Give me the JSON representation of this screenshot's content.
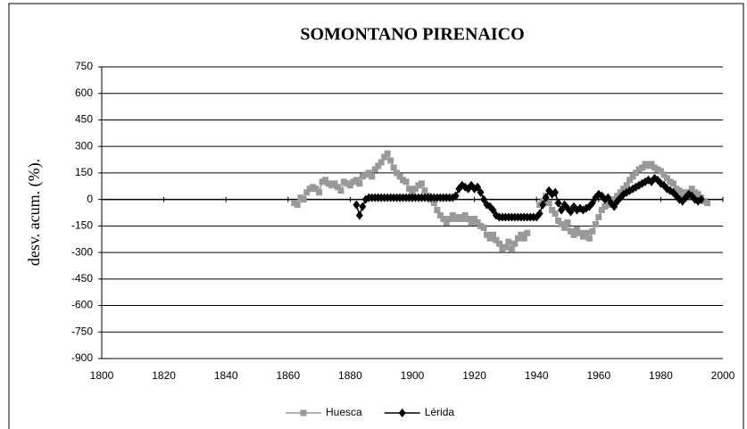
{
  "chart_data": {
    "type": "line",
    "title": "SOMONTANO PIRENAICO",
    "y_label": "desv. acum. (%).",
    "x": [
      1862,
      1863,
      1864,
      1865,
      1866,
      1867,
      1868,
      1869,
      1870,
      1871,
      1872,
      1873,
      1874,
      1875,
      1876,
      1877,
      1878,
      1879,
      1880,
      1881,
      1882,
      1883,
      1884,
      1885,
      1886,
      1887,
      1888,
      1889,
      1890,
      1891,
      1892,
      1893,
      1894,
      1895,
      1896,
      1897,
      1898,
      1899,
      1900,
      1901,
      1902,
      1903,
      1904,
      1905,
      1906,
      1907,
      1908,
      1909,
      1910,
      1911,
      1912,
      1913,
      1914,
      1915,
      1916,
      1917,
      1918,
      1919,
      1920,
      1921,
      1922,
      1923,
      1924,
      1925,
      1926,
      1927,
      1928,
      1929,
      1930,
      1931,
      1932,
      1933,
      1934,
      1935,
      1936,
      1937,
      1938,
      1939,
      1940,
      1941,
      1942,
      1943,
      1944,
      1945,
      1946,
      1947,
      1948,
      1949,
      1950,
      1951,
      1952,
      1953,
      1954,
      1955,
      1956,
      1957,
      1958,
      1959,
      1960,
      1961,
      1962,
      1963,
      1964,
      1965,
      1966,
      1967,
      1968,
      1969,
      1970,
      1971,
      1972,
      1973,
      1974,
      1975,
      1976,
      1977,
      1978,
      1979,
      1980,
      1981,
      1982,
      1983,
      1984,
      1985,
      1986,
      1987,
      1988,
      1989,
      1990,
      1991,
      1992,
      1993,
      1994,
      1995
    ],
    "series": [
      {
        "name": "Huesca",
        "color": "#999999",
        "marker": "square",
        "values": [
          -20,
          -30,
          10,
          0,
          40,
          60,
          70,
          60,
          40,
          100,
          110,
          90,
          80,
          90,
          70,
          50,
          100,
          90,
          80,
          100,
          110,
          90,
          130,
          140,
          150,
          130,
          170,
          190,
          210,
          240,
          260,
          220,
          180,
          150,
          130,
          110,
          100,
          60,
          40,
          60,
          80,
          90,
          50,
          20,
          0,
          -20,
          -60,
          -90,
          -110,
          -130,
          -110,
          -90,
          -110,
          -100,
          -110,
          -90,
          -110,
          -130,
          -110,
          -130,
          -150,
          -160,
          -200,
          -220,
          -200,
          -230,
          -250,
          -280,
          -270,
          -240,
          -280,
          -250,
          -220,
          -200,
          -220,
          -190,
          null,
          null,
          null,
          -30,
          -10,
          20,
          -20,
          -60,
          -80,
          -120,
          -140,
          -160,
          -130,
          -180,
          -200,
          -170,
          -190,
          -210,
          -190,
          -220,
          -180,
          -140,
          -100,
          -60,
          -40,
          -10,
          -30,
          0,
          20,
          40,
          60,
          80,
          110,
          130,
          150,
          170,
          180,
          200,
          190,
          200,
          180,
          170,
          160,
          140,
          120,
          100,
          90,
          60,
          50,
          30,
          40,
          20,
          60,
          40,
          30,
          10,
          -10,
          -20
        ]
      },
      {
        "name": "Lérida",
        "color": "#000000",
        "marker": "diamond",
        "values": [
          null,
          null,
          null,
          null,
          null,
          null,
          null,
          null,
          null,
          null,
          null,
          null,
          null,
          null,
          null,
          null,
          null,
          null,
          null,
          null,
          -30,
          -90,
          -40,
          0,
          10,
          10,
          10,
          10,
          10,
          10,
          10,
          10,
          10,
          10,
          10,
          10,
          10,
          10,
          10,
          10,
          10,
          10,
          10,
          10,
          10,
          10,
          10,
          10,
          10,
          10,
          10,
          10,
          20,
          60,
          80,
          70,
          60,
          80,
          60,
          70,
          40,
          0,
          -30,
          -40,
          -60,
          -90,
          -100,
          -100,
          -100,
          -100,
          -100,
          -100,
          -100,
          -100,
          -100,
          -100,
          -100,
          -100,
          -100,
          -80,
          -30,
          10,
          50,
          30,
          40,
          -20,
          -60,
          -30,
          -50,
          -70,
          -40,
          -60,
          -50,
          -60,
          -50,
          -40,
          -20,
          10,
          30,
          20,
          0,
          10,
          -20,
          -40,
          -10,
          10,
          30,
          40,
          50,
          60,
          70,
          80,
          90,
          100,
          110,
          100,
          120,
          110,
          90,
          80,
          60,
          50,
          40,
          20,
          0,
          -10,
          10,
          30,
          20,
          0,
          -10,
          0,
          null,
          null
        ]
      }
    ],
    "xlim": [
      1800,
      2000
    ],
    "xticks": [
      1800,
      1820,
      1840,
      1860,
      1880,
      1900,
      1920,
      1940,
      1960,
      1980,
      2000
    ],
    "ylim": [
      -900,
      750
    ],
    "yticks": [
      -900,
      -750,
      -600,
      -450,
      -300,
      -150,
      0,
      150,
      300,
      450,
      600,
      750
    ],
    "grid": true,
    "legend": "bottom"
  }
}
